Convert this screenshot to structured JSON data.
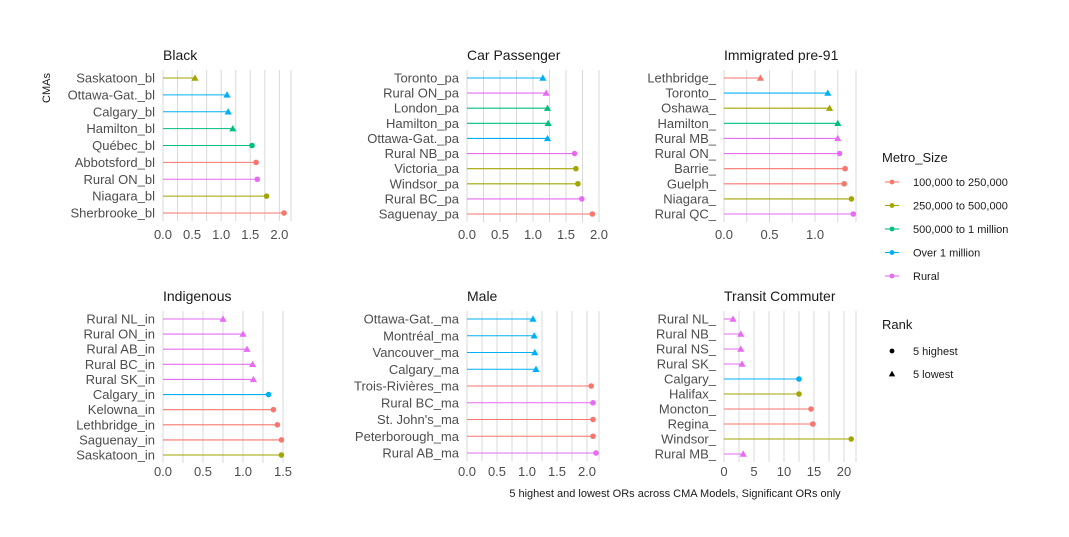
{
  "chart_data": {
    "type": "lollipop",
    "ylabel": "CMAs",
    "xlabel": "5 highest and lowest ORs across CMA Models, Significant ORs only",
    "colors": {
      "100,000 to 250,000": "#F8766D",
      "250,000 to 500,000": "#A3A500",
      "500,000 to 1 million": "#00BF7D",
      "Over 1 million": "#00B0F6",
      "Rural": "#E76BF3"
    },
    "legend": {
      "metro_title": "Metro_Size",
      "metro_items": [
        "100,000 to 250,000",
        "250,000 to 500,000",
        "500,000 to 1 million",
        "Over 1 million",
        "Rural"
      ],
      "rank_title": "Rank",
      "rank_items": [
        {
          "label": "5 highest",
          "shape": "circle"
        },
        {
          "label": "5 lowest",
          "shape": "triangle"
        }
      ]
    },
    "panels": [
      {
        "title": "Black",
        "xlim": [
          0,
          2.2
        ],
        "ticks": [
          0,
          0.5,
          1,
          1.5,
          2
        ],
        "tick_labels": [
          "0.0",
          "0.5",
          "1.0",
          "1.5",
          "2.0"
        ],
        "grid": [
          0,
          0.25,
          0.5,
          0.75,
          1,
          1.25,
          1.5,
          1.75,
          2,
          2.2
        ],
        "items": [
          {
            "label": "Saskatoon_bl",
            "value": 0.55,
            "group": "250,000 to 500,000",
            "rank": "5 lowest"
          },
          {
            "label": "Ottawa-Gat._bl",
            "value": 1.1,
            "group": "Over 1 million",
            "rank": "5 lowest"
          },
          {
            "label": "Calgary_bl",
            "value": 1.12,
            "group": "Over 1 million",
            "rank": "5 lowest"
          },
          {
            "label": "Hamilton_bl",
            "value": 1.2,
            "group": "500,000 to 1 million",
            "rank": "5 lowest"
          },
          {
            "label": "Québec_bl",
            "value": 1.53,
            "group": "500,000 to 1 million",
            "rank": "5 highest"
          },
          {
            "label": "Abbotsford_bl",
            "value": 1.6,
            "group": "100,000 to 250,000",
            "rank": "5 highest"
          },
          {
            "label": "Rural ON_bl",
            "value": 1.62,
            "group": "Rural",
            "rank": "5 highest"
          },
          {
            "label": "Niagara_bl",
            "value": 1.78,
            "group": "250,000 to 500,000",
            "rank": "5 highest"
          },
          {
            "label": "Sherbrooke_bl",
            "value": 2.08,
            "group": "100,000 to 250,000",
            "rank": "5 highest"
          }
        ]
      },
      {
        "title": "Car Passenger",
        "xlim": [
          0,
          2.0
        ],
        "ticks": [
          0,
          0.5,
          1,
          1.5,
          2
        ],
        "tick_labels": [
          "0.0",
          "0.5",
          "1.0",
          "1.5",
          "2.0"
        ],
        "grid": [
          0,
          0.25,
          0.5,
          0.75,
          1,
          1.25,
          1.5,
          1.75,
          2
        ],
        "items": [
          {
            "label": "Toronto_pa",
            "value": 1.15,
            "group": "Over 1 million",
            "rank": "5 lowest"
          },
          {
            "label": "Rural ON_pa",
            "value": 1.2,
            "group": "Rural",
            "rank": "5 lowest"
          },
          {
            "label": "London_pa",
            "value": 1.22,
            "group": "500,000 to 1 million",
            "rank": "5 lowest"
          },
          {
            "label": "Hamilton_pa",
            "value": 1.23,
            "group": "500,000 to 1 million",
            "rank": "5 lowest"
          },
          {
            "label": "Ottawa-Gat._pa",
            "value": 1.22,
            "group": "Over 1 million",
            "rank": "5 lowest"
          },
          {
            "label": "Rural NB_pa",
            "value": 1.63,
            "group": "Rural",
            "rank": "5 highest"
          },
          {
            "label": "Victoria_pa",
            "value": 1.65,
            "group": "250,000 to 500,000",
            "rank": "5 highest"
          },
          {
            "label": "Windsor_pa",
            "value": 1.68,
            "group": "250,000 to 500,000",
            "rank": "5 highest"
          },
          {
            "label": "Rural BC_pa",
            "value": 1.74,
            "group": "Rural",
            "rank": "5 highest"
          },
          {
            "label": "Saguenay_pa",
            "value": 1.9,
            "group": "100,000 to 250,000",
            "rank": "5 highest"
          }
        ]
      },
      {
        "title": "Immigrated pre-91",
        "xlim": [
          0,
          1.45
        ],
        "ticks": [
          0,
          0.5,
          1
        ],
        "tick_labels": [
          "0.0",
          "0.5",
          "1.0"
        ],
        "grid": [
          0,
          0.25,
          0.5,
          0.75,
          1,
          1.25,
          1.45
        ],
        "items": [
          {
            "label": "Lethbridge_",
            "value": 0.4,
            "group": "100,000 to 250,000",
            "rank": "5 lowest"
          },
          {
            "label": "Toronto_",
            "value": 1.14,
            "group": "Over 1 million",
            "rank": "5 lowest"
          },
          {
            "label": "Oshawa_",
            "value": 1.16,
            "group": "250,000 to 500,000",
            "rank": "5 lowest"
          },
          {
            "label": "Hamilton_",
            "value": 1.25,
            "group": "500,000 to 1 million",
            "rank": "5 lowest"
          },
          {
            "label": "Rural MB_",
            "value": 1.25,
            "group": "Rural",
            "rank": "5 lowest"
          },
          {
            "label": "Rural ON_",
            "value": 1.27,
            "group": "Rural",
            "rank": "5 highest"
          },
          {
            "label": "Barrie_",
            "value": 1.33,
            "group": "100,000 to 250,000",
            "rank": "5 highest"
          },
          {
            "label": "Guelph_",
            "value": 1.32,
            "group": "100,000 to 250,000",
            "rank": "5 highest"
          },
          {
            "label": "Niagara_",
            "value": 1.4,
            "group": "250,000 to 500,000",
            "rank": "5 highest"
          },
          {
            "label": "Rural QC_",
            "value": 1.42,
            "group": "Rural",
            "rank": "5 highest"
          }
        ]
      },
      {
        "title": "Indigenous",
        "xlim": [
          0,
          1.6
        ],
        "ticks": [
          0,
          0.5,
          1,
          1.5
        ],
        "tick_labels": [
          "0.0",
          "0.5",
          "1.0",
          "1.5"
        ],
        "grid": [
          0,
          0.25,
          0.5,
          0.75,
          1,
          1.25,
          1.5
        ],
        "items": [
          {
            "label": "Rural NL_in",
            "value": 0.75,
            "group": "Rural",
            "rank": "5 lowest"
          },
          {
            "label": "Rural ON_in",
            "value": 1.0,
            "group": "Rural",
            "rank": "5 lowest"
          },
          {
            "label": "Rural AB_in",
            "value": 1.05,
            "group": "Rural",
            "rank": "5 lowest"
          },
          {
            "label": "Rural BC_in",
            "value": 1.12,
            "group": "Rural",
            "rank": "5 lowest"
          },
          {
            "label": "Rural SK_in",
            "value": 1.13,
            "group": "Rural",
            "rank": "5 lowest"
          },
          {
            "label": "Calgary_in",
            "value": 1.32,
            "group": "Over 1 million",
            "rank": "5 highest"
          },
          {
            "label": "Kelowna_in",
            "value": 1.38,
            "group": "100,000 to 250,000",
            "rank": "5 highest"
          },
          {
            "label": "Lethbridge_in",
            "value": 1.43,
            "group": "100,000 to 250,000",
            "rank": "5 highest"
          },
          {
            "label": "Saguenay_in",
            "value": 1.48,
            "group": "100,000 to 250,000",
            "rank": "5 highest"
          },
          {
            "label": "Saskatoon_in",
            "value": 1.48,
            "group": "250,000 to 500,000",
            "rank": "5 highest"
          }
        ]
      },
      {
        "title": "Male",
        "xlim": [
          0,
          2.2
        ],
        "ticks": [
          0,
          0.5,
          1,
          1.5,
          2
        ],
        "tick_labels": [
          "0.0",
          "0.5",
          "1.0",
          "1.5",
          "2.0"
        ],
        "grid": [
          0,
          0.25,
          0.5,
          0.75,
          1,
          1.25,
          1.5,
          1.75,
          2,
          2.2
        ],
        "items": [
          {
            "label": "Ottawa-Gat._ma",
            "value": 1.1,
            "group": "Over 1 million",
            "rank": "5 lowest"
          },
          {
            "label": "Montréal_ma",
            "value": 1.12,
            "group": "Over 1 million",
            "rank": "5 lowest"
          },
          {
            "label": "Vancouver_ma",
            "value": 1.13,
            "group": "Over 1 million",
            "rank": "5 lowest"
          },
          {
            "label": "Calgary_ma",
            "value": 1.15,
            "group": "Over 1 million",
            "rank": "5 lowest"
          },
          {
            "label": "Trois-Rivières_ma",
            "value": 2.07,
            "group": "100,000 to 250,000",
            "rank": "5 highest"
          },
          {
            "label": "Rural BC_ma",
            "value": 2.1,
            "group": "Rural",
            "rank": "5 highest"
          },
          {
            "label": "St. John's_ma",
            "value": 2.1,
            "group": "100,000 to 250,000",
            "rank": "5 highest"
          },
          {
            "label": "Peterborough_ma",
            "value": 2.1,
            "group": "100,000 to 250,000",
            "rank": "5 highest"
          },
          {
            "label": "Rural AB_ma",
            "value": 2.15,
            "group": "Rural",
            "rank": "5 highest"
          }
        ]
      },
      {
        "title": "Transit Commuter",
        "xlim": [
          0,
          22
        ],
        "ticks": [
          0,
          5,
          10,
          15,
          20
        ],
        "tick_labels": [
          "0",
          "5",
          "10",
          "15",
          "20"
        ],
        "grid": [
          0,
          2.5,
          5,
          7.5,
          10,
          12.5,
          15,
          17.5,
          20,
          22
        ],
        "items": [
          {
            "label": "Rural NL_",
            "value": 1.5,
            "group": "Rural",
            "rank": "5 lowest"
          },
          {
            "label": "Rural NB_",
            "value": 2.8,
            "group": "Rural",
            "rank": "5 lowest"
          },
          {
            "label": "Rural NS_",
            "value": 2.8,
            "group": "Rural",
            "rank": "5 lowest"
          },
          {
            "label": "Rural SK_",
            "value": 3.0,
            "group": "Rural",
            "rank": "5 lowest"
          },
          {
            "label": "Calgary_",
            "value": 12.5,
            "group": "Over 1 million",
            "rank": "5 highest"
          },
          {
            "label": "Halifax_",
            "value": 12.5,
            "group": "250,000 to 500,000",
            "rank": "5 highest"
          },
          {
            "label": "Moncton_",
            "value": 14.5,
            "group": "100,000 to 250,000",
            "rank": "5 highest"
          },
          {
            "label": "Regina_",
            "value": 14.8,
            "group": "100,000 to 250,000",
            "rank": "5 highest"
          },
          {
            "label": "Windsor_",
            "value": 21.2,
            "group": "250,000 to 500,000",
            "rank": "5 highest"
          },
          {
            "label": "Rural MB_",
            "value": 3.2,
            "group": "Rural",
            "rank": "5 lowest"
          }
        ]
      }
    ]
  }
}
